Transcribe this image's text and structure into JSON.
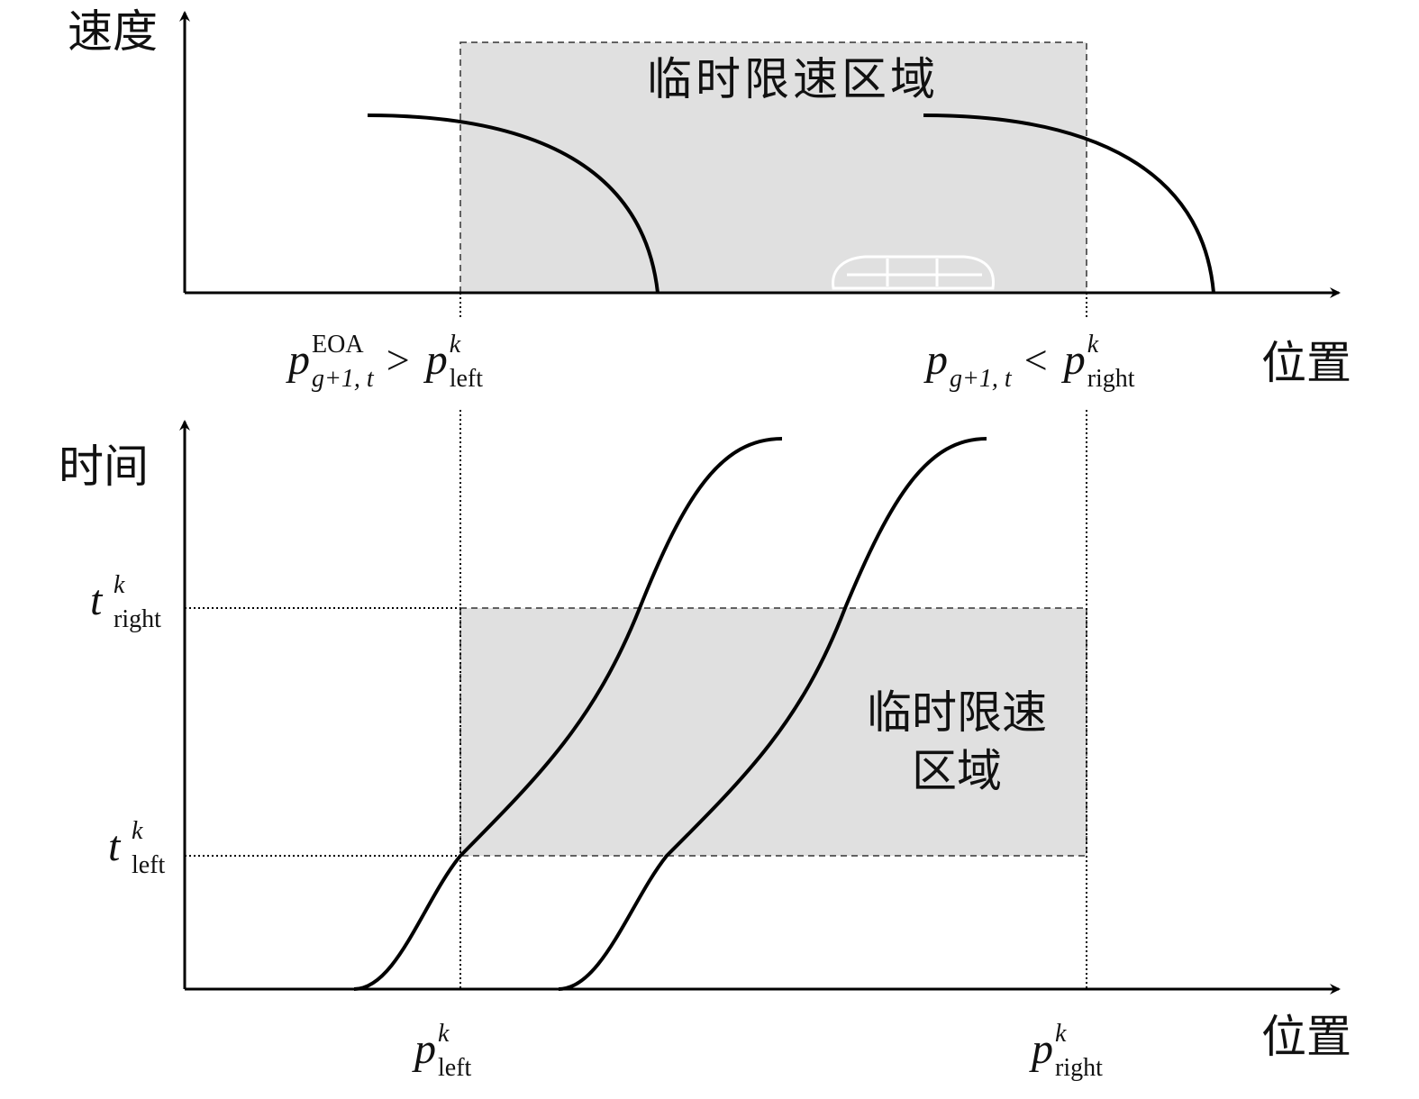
{
  "top_panel": {
    "y_label": "速度",
    "x_label": "位置",
    "zone_label": "临时限速区域",
    "conditions": [
      {
        "left": {
          "base": "p",
          "sup": "EOA",
          "sub": "g+1, t"
        },
        "op": ">",
        "right": {
          "base": "p",
          "sup": "k",
          "sub": "left"
        }
      },
      {
        "left": {
          "base": "p",
          "sub": "g+1, t"
        },
        "op": "<",
        "right": {
          "base": "p",
          "sup": "k",
          "sub": "right"
        }
      }
    ]
  },
  "bottom_panel": {
    "y_label": "时间",
    "x_label": "位置",
    "zone_label": [
      "临时限速",
      "区域"
    ],
    "y_ticks": [
      {
        "base": "t",
        "sup": "k",
        "sub": "right"
      },
      {
        "base": "t",
        "sup": "k",
        "sub": "left"
      }
    ],
    "x_ticks": [
      {
        "base": "p",
        "sup": "k",
        "sub": "left"
      },
      {
        "base": "p",
        "sup": "k",
        "sub": "right"
      }
    ]
  }
}
